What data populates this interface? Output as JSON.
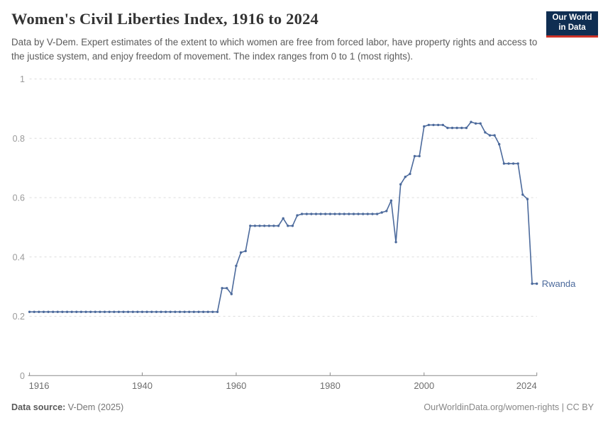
{
  "header": {
    "title": "Women's Civil Liberties Index, 1916 to 2024",
    "subtitle": "Data by V-Dem. Expert estimates of the extent to which women are free from forced labor, have property rights and access to the justice system, and enjoy freedom of movement. The index ranges from 0 to 1 (most rights).",
    "logo": {
      "line1": "Our World",
      "line2": "in Data",
      "bg_color": "#0f2e52",
      "accent_color": "#cd3227"
    }
  },
  "chart_data": {
    "type": "line",
    "title": "Women's Civil Liberties Index, 1916 to 2024",
    "xlabel": "",
    "ylabel": "",
    "xlim": [
      1916,
      2024
    ],
    "ylim": [
      0,
      1
    ],
    "xticks": [
      1916,
      1940,
      1960,
      1980,
      2000,
      2024
    ],
    "yticks": [
      0,
      0.2,
      0.4,
      0.6,
      0.8,
      1
    ],
    "grid": "horizontal-dashed",
    "legend_position": "end-of-line-label",
    "series": [
      {
        "name": "Rwanda",
        "color": "#4c6a9c",
        "years": [
          1916,
          1917,
          1918,
          1919,
          1920,
          1921,
          1922,
          1923,
          1924,
          1925,
          1926,
          1927,
          1928,
          1929,
          1930,
          1931,
          1932,
          1933,
          1934,
          1935,
          1936,
          1937,
          1938,
          1939,
          1940,
          1941,
          1942,
          1943,
          1944,
          1945,
          1946,
          1947,
          1948,
          1949,
          1950,
          1951,
          1952,
          1953,
          1954,
          1955,
          1956,
          1957,
          1958,
          1959,
          1960,
          1961,
          1962,
          1963,
          1964,
          1965,
          1966,
          1967,
          1968,
          1969,
          1970,
          1971,
          1972,
          1973,
          1974,
          1975,
          1976,
          1977,
          1978,
          1979,
          1980,
          1981,
          1982,
          1983,
          1984,
          1985,
          1986,
          1987,
          1988,
          1989,
          1990,
          1991,
          1992,
          1993,
          1994,
          1995,
          1996,
          1997,
          1998,
          1999,
          2000,
          2001,
          2002,
          2003,
          2004,
          2005,
          2006,
          2007,
          2008,
          2009,
          2010,
          2011,
          2012,
          2013,
          2014,
          2015,
          2016,
          2017,
          2018,
          2019,
          2020,
          2021,
          2022,
          2023,
          2024
        ],
        "values": [
          0.215,
          0.215,
          0.215,
          0.215,
          0.215,
          0.215,
          0.215,
          0.215,
          0.215,
          0.215,
          0.215,
          0.215,
          0.215,
          0.215,
          0.215,
          0.215,
          0.215,
          0.215,
          0.215,
          0.215,
          0.215,
          0.215,
          0.215,
          0.215,
          0.215,
          0.215,
          0.215,
          0.215,
          0.215,
          0.215,
          0.215,
          0.215,
          0.215,
          0.215,
          0.215,
          0.215,
          0.215,
          0.215,
          0.215,
          0.215,
          0.215,
          0.295,
          0.295,
          0.275,
          0.37,
          0.415,
          0.42,
          0.505,
          0.505,
          0.505,
          0.505,
          0.505,
          0.505,
          0.505,
          0.53,
          0.505,
          0.505,
          0.54,
          0.545,
          0.545,
          0.545,
          0.545,
          0.545,
          0.545,
          0.545,
          0.545,
          0.545,
          0.545,
          0.545,
          0.545,
          0.545,
          0.545,
          0.545,
          0.545,
          0.545,
          0.55,
          0.555,
          0.59,
          0.45,
          0.645,
          0.67,
          0.68,
          0.74,
          0.74,
          0.84,
          0.845,
          0.845,
          0.845,
          0.845,
          0.835,
          0.835,
          0.835,
          0.835,
          0.835,
          0.855,
          0.85,
          0.85,
          0.82,
          0.81,
          0.81,
          0.78,
          0.715,
          0.715,
          0.715,
          0.715,
          0.61,
          0.595,
          0.31,
          0.31
        ]
      }
    ]
  },
  "footer": {
    "source_label": "Data source:",
    "source_value": " V-Dem (2025)",
    "credit": "OurWorldinData.org/women-rights | CC BY"
  }
}
